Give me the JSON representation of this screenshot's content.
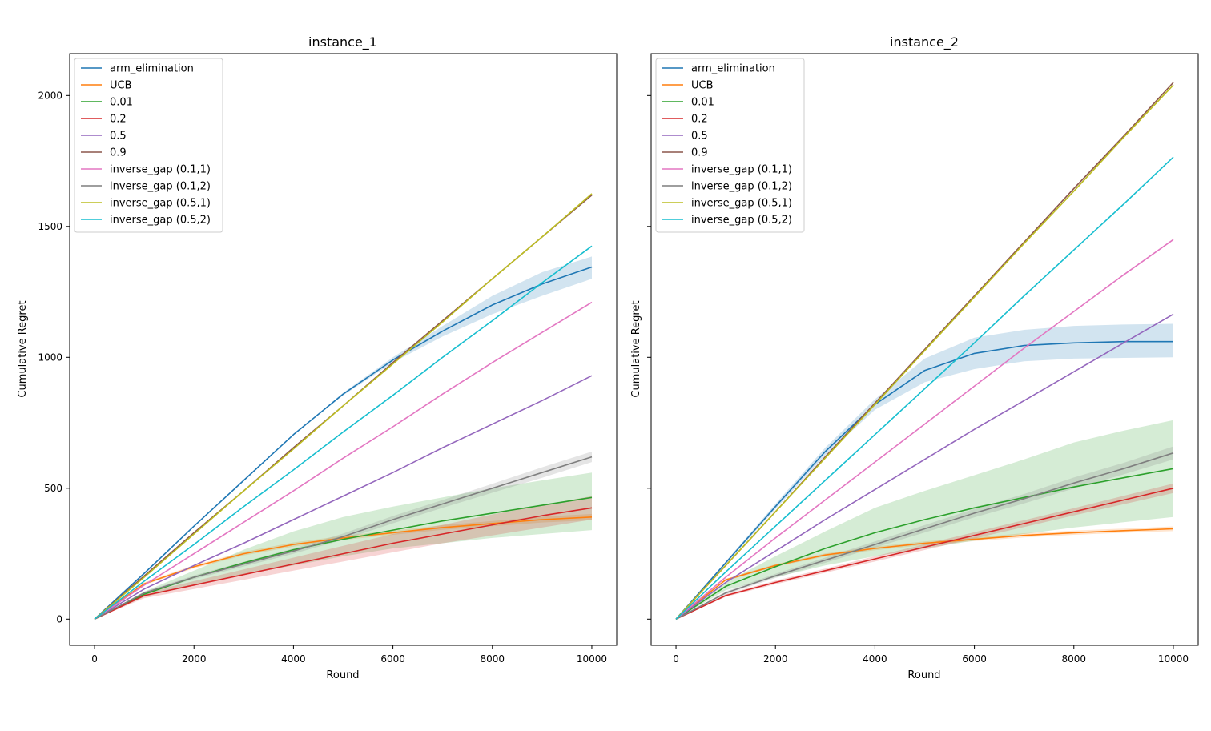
{
  "chart_data": [
    {
      "type": "line",
      "title": "instance_1",
      "xlabel": "Round",
      "ylabel": "Cumulative Regret",
      "xlim": [
        -500,
        10500
      ],
      "ylim": [
        -100,
        2160
      ],
      "xticks": [
        "0",
        "2000",
        "4000",
        "6000",
        "8000",
        "10000"
      ],
      "yticks": [
        "0",
        "500",
        "1000",
        "1500",
        "2000"
      ],
      "legend": "upper-left",
      "series": [
        {
          "name": "arm_elimination",
          "color": "#1f77b4",
          "x": [
            0,
            1000,
            2000,
            3000,
            4000,
            5000,
            6000,
            7000,
            8000,
            9000,
            10000
          ],
          "y": [
            0,
            175,
            355,
            530,
            705,
            860,
            990,
            1100,
            1200,
            1280,
            1345
          ],
          "lo": [
            0,
            175,
            355,
            530,
            705,
            855,
            980,
            1080,
            1165,
            1235,
            1300
          ],
          "hi": [
            0,
            175,
            355,
            530,
            705,
            865,
            1000,
            1120,
            1235,
            1325,
            1385
          ]
        },
        {
          "name": "UCB",
          "color": "#ff7f0e",
          "x": [
            0,
            1000,
            2000,
            3000,
            4000,
            5000,
            6000,
            7000,
            8000,
            9000,
            10000
          ],
          "y": [
            0,
            135,
            200,
            250,
            285,
            310,
            330,
            350,
            365,
            380,
            390
          ],
          "lo": [
            0,
            130,
            194,
            243,
            277,
            302,
            322,
            341,
            355,
            369,
            378
          ],
          "hi": [
            0,
            140,
            206,
            257,
            293,
            318,
            338,
            359,
            375,
            391,
            402
          ]
        },
        {
          "name": "0.01",
          "color": "#2ca02c",
          "x": [
            0,
            1000,
            2000,
            3000,
            4000,
            5000,
            6000,
            7000,
            8000,
            9000,
            10000
          ],
          "y": [
            0,
            95,
            160,
            215,
            265,
            305,
            340,
            375,
            405,
            435,
            465
          ],
          "lo": [
            0,
            85,
            130,
            170,
            205,
            240,
            270,
            290,
            310,
            325,
            340
          ],
          "hi": [
            0,
            105,
            185,
            265,
            335,
            390,
            430,
            465,
            500,
            530,
            560
          ]
        },
        {
          "name": "0.2",
          "color": "#d62728",
          "x": [
            0,
            1000,
            2000,
            3000,
            4000,
            5000,
            6000,
            7000,
            8000,
            9000,
            10000
          ],
          "y": [
            0,
            90,
            130,
            170,
            210,
            250,
            290,
            325,
            360,
            395,
            425
          ],
          "lo": [
            0,
            80,
            115,
            150,
            185,
            220,
            255,
            290,
            320,
            350,
            380
          ],
          "hi": [
            0,
            100,
            145,
            190,
            235,
            280,
            325,
            360,
            400,
            435,
            470
          ]
        },
        {
          "name": "0.5",
          "color": "#9467bd",
          "x": [
            0,
            1000,
            2000,
            3000,
            4000,
            5000,
            6000,
            7000,
            8000,
            9000,
            10000
          ],
          "y": [
            0,
            115,
            205,
            290,
            380,
            470,
            560,
            655,
            745,
            835,
            930
          ]
        },
        {
          "name": "0.9",
          "color": "#8c564b",
          "x": [
            0,
            1000,
            2000,
            3000,
            4000,
            5000,
            6000,
            7000,
            8000,
            9000,
            10000
          ],
          "y": [
            0,
            165,
            330,
            490,
            655,
            815,
            980,
            1140,
            1300,
            1460,
            1620
          ]
        },
        {
          "name": "inverse_gap (0.1,1)",
          "color": "#e377c2",
          "x": [
            0,
            1000,
            2000,
            3000,
            4000,
            5000,
            6000,
            7000,
            8000,
            9000,
            10000
          ],
          "y": [
            0,
            130,
            250,
            370,
            490,
            615,
            735,
            860,
            980,
            1095,
            1210
          ]
        },
        {
          "name": "inverse_gap (0.1,2)",
          "color": "#7f7f7f",
          "x": [
            0,
            1000,
            2000,
            3000,
            4000,
            5000,
            6000,
            7000,
            8000,
            9000,
            10000
          ],
          "y": [
            0,
            100,
            160,
            210,
            260,
            315,
            380,
            440,
            500,
            560,
            620
          ],
          "lo": [
            0,
            95,
            153,
            201,
            250,
            303,
            366,
            425,
            483,
            540,
            600
          ],
          "hi": [
            0,
            105,
            167,
            219,
            270,
            327,
            394,
            455,
            517,
            580,
            640
          ]
        },
        {
          "name": "inverse_gap (0.5,1)",
          "color": "#bcbd22",
          "x": [
            0,
            1000,
            2000,
            3000,
            4000,
            5000,
            6000,
            7000,
            8000,
            9000,
            10000
          ],
          "y": [
            0,
            160,
            325,
            490,
            650,
            815,
            975,
            1135,
            1300,
            1460,
            1625
          ]
        },
        {
          "name": "inverse_gap (0.5,2)",
          "color": "#17becf",
          "x": [
            0,
            1000,
            2000,
            3000,
            4000,
            5000,
            6000,
            7000,
            8000,
            9000,
            10000
          ],
          "y": [
            0,
            145,
            285,
            430,
            570,
            715,
            855,
            1000,
            1140,
            1285,
            1425
          ]
        }
      ]
    },
    {
      "type": "line",
      "title": "instance_2",
      "xlabel": "Round",
      "ylabel": "Cumulative Regret",
      "xlim": [
        -500,
        10500
      ],
      "ylim": [
        -100,
        2160
      ],
      "xticks": [
        "0",
        "2000",
        "4000",
        "6000",
        "8000",
        "10000"
      ],
      "yticks": [
        "0",
        "500",
        "1000",
        "1500",
        "2000"
      ],
      "legend": "upper-left",
      "series": [
        {
          "name": "arm_elimination",
          "color": "#1f77b4",
          "x": [
            0,
            1000,
            2000,
            3000,
            4000,
            5000,
            6000,
            7000,
            8000,
            9000,
            10000
          ],
          "y": [
            0,
            215,
            430,
            640,
            820,
            950,
            1015,
            1045,
            1055,
            1060,
            1060
          ],
          "lo": [
            0,
            210,
            420,
            625,
            800,
            905,
            955,
            985,
            995,
            998,
            1000
          ],
          "hi": [
            0,
            220,
            440,
            655,
            840,
            995,
            1075,
            1105,
            1120,
            1125,
            1128
          ]
        },
        {
          "name": "UCB",
          "color": "#ff7f0e",
          "x": [
            0,
            1000,
            2000,
            3000,
            4000,
            5000,
            6000,
            7000,
            8000,
            9000,
            10000
          ],
          "y": [
            0,
            150,
            205,
            245,
            270,
            290,
            305,
            320,
            330,
            338,
            345
          ],
          "lo": [
            0,
            146,
            200,
            239,
            263,
            283,
            298,
            312,
            322,
            330,
            336
          ],
          "hi": [
            0,
            154,
            210,
            251,
            277,
            297,
            312,
            328,
            338,
            346,
            354
          ]
        },
        {
          "name": "0.01",
          "color": "#2ca02c",
          "x": [
            0,
            1000,
            2000,
            3000,
            4000,
            5000,
            6000,
            7000,
            8000,
            9000,
            10000
          ],
          "y": [
            0,
            125,
            200,
            270,
            330,
            380,
            425,
            465,
            505,
            540,
            575
          ],
          "lo": [
            0,
            110,
            160,
            205,
            240,
            270,
            300,
            325,
            350,
            370,
            390
          ],
          "hi": [
            0,
            140,
            240,
            335,
            425,
            490,
            550,
            610,
            675,
            720,
            760
          ]
        },
        {
          "name": "0.2",
          "color": "#d62728",
          "x": [
            0,
            1000,
            2000,
            3000,
            4000,
            5000,
            6000,
            7000,
            8000,
            9000,
            10000
          ],
          "y": [
            0,
            90,
            140,
            185,
            230,
            275,
            320,
            365,
            410,
            455,
            500
          ],
          "lo": [
            0,
            85,
            133,
            177,
            220,
            264,
            308,
            352,
            396,
            439,
            482
          ],
          "hi": [
            0,
            95,
            147,
            193,
            240,
            286,
            332,
            378,
            424,
            471,
            518
          ]
        },
        {
          "name": "0.5",
          "color": "#9467bd",
          "x": [
            0,
            1000,
            2000,
            3000,
            4000,
            5000,
            6000,
            7000,
            8000,
            9000,
            10000
          ],
          "y": [
            0,
            140,
            260,
            380,
            495,
            610,
            725,
            835,
            945,
            1055,
            1165
          ]
        },
        {
          "name": "0.9",
          "color": "#8c564b",
          "x": [
            0,
            1000,
            2000,
            3000,
            4000,
            5000,
            6000,
            7000,
            8000,
            9000,
            10000
          ],
          "y": [
            0,
            205,
            410,
            620,
            825,
            1030,
            1235,
            1440,
            1645,
            1845,
            2050
          ]
        },
        {
          "name": "inverse_gap (0.1,1)",
          "color": "#e377c2",
          "x": [
            0,
            1000,
            2000,
            3000,
            4000,
            5000,
            6000,
            7000,
            8000,
            9000,
            10000
          ],
          "y": [
            0,
            160,
            310,
            455,
            600,
            745,
            890,
            1035,
            1175,
            1315,
            1450
          ]
        },
        {
          "name": "inverse_gap (0.1,2)",
          "color": "#7f7f7f",
          "x": [
            0,
            1000,
            2000,
            3000,
            4000,
            5000,
            6000,
            7000,
            8000,
            9000,
            10000
          ],
          "y": [
            0,
            100,
            165,
            225,
            285,
            345,
            405,
            460,
            520,
            575,
            635
          ],
          "lo": [
            0,
            94,
            157,
            215,
            273,
            331,
            389,
            442,
            499,
            553,
            610
          ],
          "hi": [
            0,
            106,
            173,
            235,
            297,
            359,
            421,
            478,
            541,
            597,
            660
          ]
        },
        {
          "name": "inverse_gap (0.5,1)",
          "color": "#bcbd22",
          "x": [
            0,
            1000,
            2000,
            3000,
            4000,
            5000,
            6000,
            7000,
            8000,
            9000,
            10000
          ],
          "y": [
            0,
            205,
            410,
            615,
            820,
            1025,
            1230,
            1435,
            1635,
            1840,
            2040
          ]
        },
        {
          "name": "inverse_gap (0.5,2)",
          "color": "#17becf",
          "x": [
            0,
            1000,
            2000,
            3000,
            4000,
            5000,
            6000,
            7000,
            8000,
            9000,
            10000
          ],
          "y": [
            0,
            180,
            355,
            530,
            705,
            880,
            1055,
            1235,
            1410,
            1585,
            1765
          ]
        }
      ]
    }
  ]
}
